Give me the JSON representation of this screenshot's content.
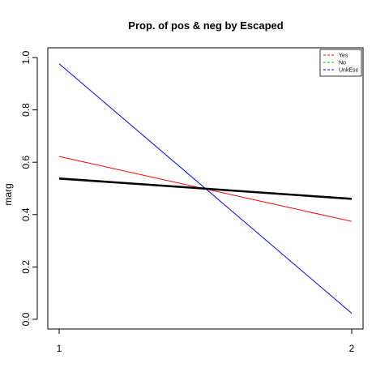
{
  "chart_data": {
    "type": "line",
    "title": "Prop. of pos & neg by Escaped",
    "xlabel": "",
    "ylabel": "marg",
    "x": [
      1,
      2
    ],
    "x_tick_labels": [
      "1",
      "2"
    ],
    "y_ticks": [
      0.0,
      0.2,
      0.4,
      0.6,
      0.8,
      1.0
    ],
    "y_tick_labels": [
      "0.0",
      "0.2",
      "0.4",
      "0.6",
      "0.8",
      "1.0"
    ],
    "ylim": [
      0.0,
      1.0
    ],
    "xlim": [
      1,
      2
    ],
    "legend_position": "top-right",
    "series": [
      {
        "name": "Yes",
        "values": [
          0.622,
          0.374
        ],
        "color": "#ff0000",
        "style": "solid"
      },
      {
        "name": "No",
        "values": [
          0.535,
          0.463
        ],
        "color": "#00cd00",
        "style": "solid"
      },
      {
        "name": "UnkEsc",
        "values": [
          0.976,
          0.023
        ],
        "color": "#0000ff",
        "style": "solid"
      },
      {
        "name": "",
        "values": [
          0.538,
          0.46
        ],
        "color": "#000000",
        "style": "thick"
      }
    ]
  }
}
